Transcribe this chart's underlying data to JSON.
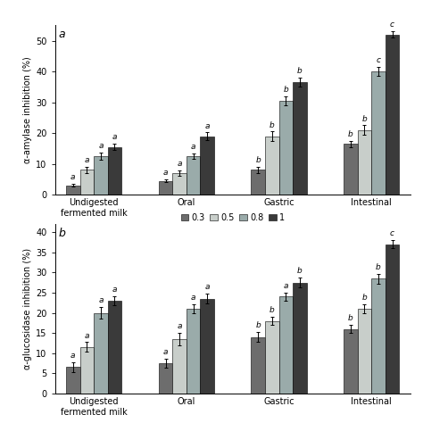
{
  "panel_a": {
    "title": "a",
    "ylabel": "α-amylase inhibition (%)",
    "ylim": [
      0,
      55
    ],
    "yticks": [
      0,
      10,
      20,
      30,
      40,
      50
    ],
    "groups": [
      "Undigested\nfermented milk",
      "Oral",
      "Gastric",
      "Intestinal"
    ],
    "values": [
      [
        3.0,
        8.0,
        12.5,
        15.5
      ],
      [
        4.5,
        7.0,
        12.5,
        19.0
      ],
      [
        8.0,
        19.0,
        30.5,
        36.5
      ],
      [
        16.5,
        21.0,
        40.0,
        52.0
      ]
    ],
    "errors": [
      [
        0.5,
        1.0,
        1.2,
        1.0
      ],
      [
        0.5,
        0.8,
        1.0,
        1.2
      ],
      [
        1.0,
        1.5,
        1.5,
        1.5
      ],
      [
        1.0,
        1.5,
        1.5,
        1.0
      ]
    ],
    "letters": [
      [
        "a",
        "a",
        "a",
        "a"
      ],
      [
        "a",
        "a",
        "a",
        "a"
      ],
      [
        "b",
        "b",
        "b",
        "b"
      ],
      [
        "b",
        "b",
        "c",
        "c"
      ]
    ]
  },
  "panel_b": {
    "title": "b",
    "ylabel": "α-glucosidase inhibition (%)",
    "ylim": [
      0,
      42
    ],
    "yticks": [
      0,
      5,
      10,
      15,
      20,
      25,
      30,
      35,
      40
    ],
    "groups": [
      "Undigested\nfermented milk",
      "Oral",
      "Gastric",
      "Intestinal"
    ],
    "values": [
      [
        6.5,
        11.5,
        20.0,
        23.0
      ],
      [
        7.5,
        13.5,
        21.0,
        23.5
      ],
      [
        14.0,
        18.0,
        24.0,
        27.5
      ],
      [
        16.0,
        21.0,
        28.5,
        37.0
      ]
    ],
    "errors": [
      [
        1.2,
        1.2,
        1.5,
        1.2
      ],
      [
        1.2,
        1.5,
        1.2,
        1.2
      ],
      [
        1.2,
        1.0,
        1.0,
        1.2
      ],
      [
        1.0,
        1.2,
        1.2,
        1.0
      ]
    ],
    "letters": [
      [
        "a",
        "a",
        "a",
        "a"
      ],
      [
        "a",
        "a",
        "a",
        "a"
      ],
      [
        "b",
        "b",
        "a",
        "b"
      ],
      [
        "b",
        "b",
        "b",
        "c"
      ]
    ]
  },
  "bar_colors": [
    "#6d6d6d",
    "#c8ceca",
    "#9aabaa",
    "#3a3a3a"
  ],
  "legend_labels": [
    "0.3",
    "0.5",
    "0.8",
    "1"
  ],
  "bar_width": 0.15,
  "font_size": 7,
  "letter_font_size": 6.5,
  "background_color": "#ffffff"
}
